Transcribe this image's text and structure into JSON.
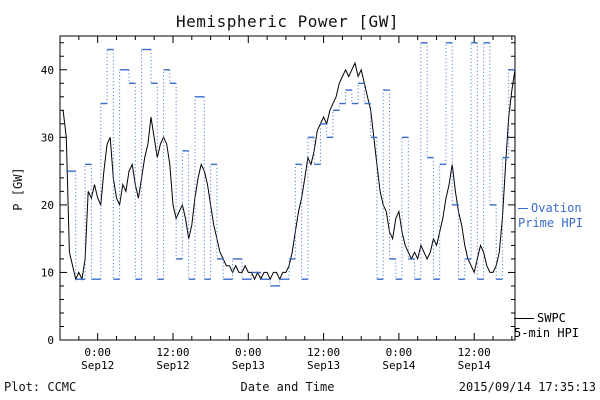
{
  "title": "Hemispheric Power [GW]",
  "y_axis_label": "P [GW]",
  "x_axis_label": "Date and Time",
  "footer": {
    "plot_credit": "Plot: CCMC",
    "timestamp": "2015/09/14 17:35:13"
  },
  "legend": {
    "ovation": {
      "label_line1": "Ovation",
      "label_line2": "Prime HPI",
      "color": "#3b6ccc"
    },
    "swpc": {
      "label_line1": "SWPC",
      "label_line2": "5-min HPI",
      "color": "#000000"
    }
  },
  "chart_data": {
    "type": "line",
    "title": "Hemispheric Power [GW]",
    "xlabel": "Date and Time",
    "ylabel": "P [GW]",
    "ylim": [
      0,
      45
    ],
    "xlim": [
      -6,
      66.5
    ],
    "x_unit": "hours relative to 2015-09-12 00:00",
    "grid": false,
    "legend_position": "right",
    "y_ticks": [
      0,
      10,
      20,
      30,
      40
    ],
    "x_ticks": [
      {
        "t": 0,
        "time": "0:00",
        "date": "Sep12"
      },
      {
        "t": 12,
        "time": "12:00",
        "date": "Sep12"
      },
      {
        "t": 24,
        "time": "0:00",
        "date": "Sep13"
      },
      {
        "t": 36,
        "time": "12:00",
        "date": "Sep13"
      },
      {
        "t": 48,
        "time": "0:00",
        "date": "Sep14"
      },
      {
        "t": 60,
        "time": "12:00",
        "date": "Sep14"
      }
    ],
    "series": [
      {
        "name": "SWPC 5-min HPI",
        "style": "line",
        "color": "#000000",
        "x_start": -5.5,
        "x_step": 0.5,
        "values": [
          34,
          30,
          13,
          11,
          9,
          10,
          9,
          12,
          22,
          21,
          23,
          21,
          20,
          25,
          29,
          30,
          24,
          21,
          20,
          23,
          22,
          25,
          26,
          23,
          21,
          24,
          27,
          29,
          33,
          30,
          27,
          29,
          30,
          29,
          26,
          20,
          18,
          19,
          20,
          18,
          15,
          17,
          21,
          24,
          26,
          25,
          23,
          20,
          17,
          15,
          13,
          12,
          11,
          11,
          10,
          11,
          10,
          10,
          11,
          10,
          10,
          9,
          10,
          9,
          10,
          10,
          9,
          10,
          10,
          9,
          10,
          10,
          11,
          13,
          16,
          19,
          21,
          24,
          27,
          26,
          28,
          31,
          32,
          33,
          32,
          34,
          35,
          36,
          38,
          39,
          40,
          39,
          40,
          41,
          39,
          40,
          38,
          36,
          34,
          30,
          26,
          22,
          20,
          19,
          16,
          15,
          18,
          19,
          16,
          14,
          13,
          12,
          13,
          12,
          14,
          13,
          12,
          13,
          15,
          14,
          16,
          18,
          21,
          23,
          26,
          22,
          19,
          17,
          14,
          12,
          11,
          10,
          12,
          14,
          13,
          11,
          10,
          10,
          11,
          13,
          18,
          26,
          33,
          37,
          40
        ]
      },
      {
        "name": "Ovation Prime HPI",
        "style": "step",
        "connector": "dotted",
        "color": "#3b6ccc",
        "x": [
          -5,
          -3.5,
          -2,
          -1,
          0.5,
          1.5,
          2.5,
          3.5,
          5,
          6,
          7,
          8.5,
          9.5,
          10.5,
          11.5,
          12.5,
          13.5,
          14.5,
          15.5,
          17,
          18,
          19,
          20,
          21.5,
          23,
          24.5,
          26,
          27.5,
          29,
          30.5,
          31.5,
          32.5,
          33.5,
          34.5,
          35.5,
          36.5,
          37.5,
          38.5,
          39.5,
          40.5,
          41.5,
          42.5,
          43.5,
          44.5,
          45.5,
          46.5,
          47.5,
          48.5,
          49.5,
          50.5,
          51.5,
          52.5,
          53.5,
          54.5,
          55.5,
          56.5,
          57.5,
          58.5,
          59.5,
          60.5,
          61.5,
          62.5,
          63.5,
          64.5,
          65.5
        ],
        "values": [
          25,
          9,
          26,
          9,
          35,
          43,
          9,
          40,
          38,
          9,
          43,
          38,
          9,
          40,
          38,
          12,
          28,
          9,
          36,
          9,
          26,
          12,
          9,
          12,
          9,
          10,
          9,
          8,
          9,
          12,
          26,
          9,
          30,
          26,
          32,
          30,
          34,
          35,
          37,
          35,
          38,
          35,
          30,
          9,
          37,
          12,
          9,
          30,
          12,
          9,
          44,
          27,
          9,
          26,
          44,
          20,
          9,
          12,
          44,
          9,
          44,
          20,
          9,
          27,
          40
        ]
      }
    ]
  }
}
